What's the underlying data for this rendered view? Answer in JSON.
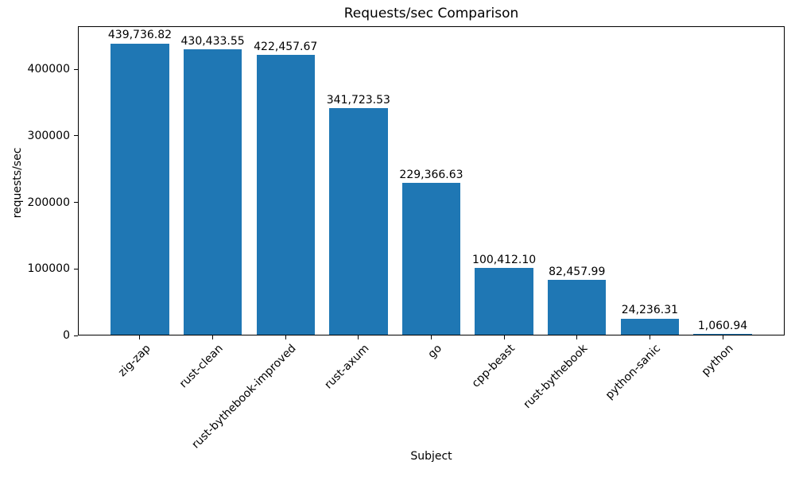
{
  "chart_data": {
    "type": "bar",
    "title": "Requests/sec Comparison",
    "xlabel": "Subject",
    "ylabel": "requests/sec",
    "categories": [
      "zig-zap",
      "rust-clean",
      "rust-bythebook-improved",
      "rust-axum",
      "go",
      "cpp-beast",
      "rust-bythebook",
      "python-sanic",
      "python"
    ],
    "values": [
      439736.82,
      430433.55,
      422457.67,
      341723.53,
      229366.63,
      100412.1,
      82457.99,
      24236.31,
      1060.94
    ],
    "value_labels": [
      "439,736.82",
      "430,433.55",
      "422,457.67",
      "341,723.53",
      "229,366.63",
      "100,412.10",
      "82,457.99",
      "24,236.31",
      "1,060.94"
    ],
    "yticks": [
      0,
      100000,
      200000,
      300000,
      400000
    ],
    "ytick_labels": [
      "0",
      "100000",
      "200000",
      "300000",
      "400000"
    ],
    "ylim": [
      0,
      464478
    ],
    "xlim": [
      -0.84,
      8.84
    ],
    "bar_width_units": 0.8,
    "bar_color": "#1f77b4",
    "grid": false,
    "legend": null
  }
}
